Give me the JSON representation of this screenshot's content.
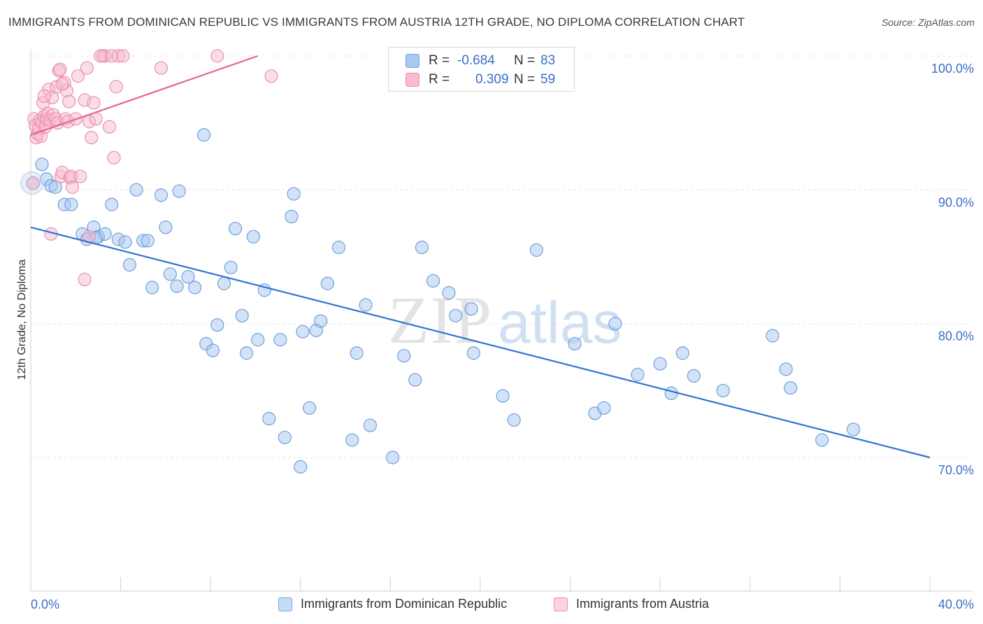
{
  "title": "IMMIGRANTS FROM DOMINICAN REPUBLIC VS IMMIGRANTS FROM AUSTRIA 12TH GRADE, NO DIPLOMA CORRELATION CHART",
  "source": "Source: ZipAtlas.com",
  "watermark": {
    "zip": "ZIP",
    "atlas": "atlas"
  },
  "legend_top": [
    {
      "r_label": "R =",
      "r_value": "-0.684",
      "n_label": "N =",
      "n_value": "83",
      "color": "#a8c8f0",
      "border": "#7aa6e0"
    },
    {
      "r_label": "R =",
      "r_value": "0.309",
      "n_label": "N =",
      "n_value": "59",
      "color": "#f8bcd0",
      "border": "#ec8fae"
    }
  ],
  "legend_bottom": [
    {
      "label": "Immigrants from Dominican Republic",
      "color": "#a8c8f0",
      "border": "#7aa6e0"
    },
    {
      "label": "Immigrants from Austria",
      "color": "#f8bcd0",
      "border": "#ec8fae"
    }
  ],
  "chart_data": {
    "type": "scatter",
    "title": "IMMIGRANTS FROM DOMINICAN REPUBLIC VS IMMIGRANTS FROM AUSTRIA 12TH GRADE, NO DIPLOMA CORRELATION CHART",
    "xlabel": "",
    "ylabel": "12th Grade, No Diploma",
    "xlim": [
      0,
      40
    ],
    "ylim": [
      60,
      101
    ],
    "x_tick_labels": [
      "0.0%",
      "40.0%"
    ],
    "y_ticks": [
      70,
      80,
      90,
      100
    ],
    "y_tick_labels": [
      "70.0%",
      "80.0%",
      "90.0%",
      "100.0%"
    ],
    "grid": true,
    "legend_position": "top-center",
    "series": [
      {
        "name": "Immigrants from Dominican Republic",
        "color": "#a8c8f0",
        "edge_color": "#6f9fdc",
        "line_color": "#2f74d0",
        "trend": {
          "x": [
            0,
            40
          ],
          "y": [
            87.2,
            70.0
          ]
        },
        "points": [
          [
            0.1,
            90.5
          ],
          [
            0.5,
            91.9
          ],
          [
            0.7,
            90.8
          ],
          [
            0.9,
            90.3
          ],
          [
            1.1,
            90.2
          ],
          [
            1.5,
            88.9
          ],
          [
            1.8,
            88.9
          ],
          [
            2.3,
            86.7
          ],
          [
            2.5,
            86.3
          ],
          [
            2.8,
            87.2
          ],
          [
            3.0,
            86.5
          ],
          [
            3.3,
            86.7
          ],
          [
            3.6,
            88.9
          ],
          [
            3.9,
            86.3
          ],
          [
            4.2,
            86.1
          ],
          [
            4.4,
            84.4
          ],
          [
            4.7,
            90.0
          ],
          [
            5.0,
            86.2
          ],
          [
            5.2,
            86.2
          ],
          [
            5.4,
            82.7
          ],
          [
            5.8,
            89.6
          ],
          [
            6.0,
            87.2
          ],
          [
            6.2,
            83.7
          ],
          [
            6.5,
            82.8
          ],
          [
            6.6,
            89.9
          ],
          [
            7.0,
            83.5
          ],
          [
            7.3,
            82.7
          ],
          [
            7.7,
            94.1
          ],
          [
            7.8,
            78.5
          ],
          [
            8.1,
            78.0
          ],
          [
            8.3,
            79.9
          ],
          [
            8.6,
            83.0
          ],
          [
            8.9,
            84.2
          ],
          [
            9.1,
            87.1
          ],
          [
            9.4,
            80.6
          ],
          [
            9.6,
            77.8
          ],
          [
            9.9,
            86.5
          ],
          [
            10.1,
            78.8
          ],
          [
            10.4,
            82.5
          ],
          [
            10.6,
            72.9
          ],
          [
            11.1,
            78.8
          ],
          [
            11.3,
            71.5
          ],
          [
            11.6,
            88.0
          ],
          [
            11.7,
            89.7
          ],
          [
            12.0,
            69.3
          ],
          [
            12.1,
            79.4
          ],
          [
            12.4,
            73.7
          ],
          [
            12.7,
            79.5
          ],
          [
            12.9,
            80.2
          ],
          [
            13.2,
            83.0
          ],
          [
            13.7,
            85.7
          ],
          [
            14.3,
            71.3
          ],
          [
            14.5,
            77.8
          ],
          [
            14.9,
            81.4
          ],
          [
            15.1,
            72.4
          ],
          [
            16.1,
            70.0
          ],
          [
            16.6,
            77.6
          ],
          [
            17.1,
            75.8
          ],
          [
            17.4,
            85.7
          ],
          [
            17.9,
            83.2
          ],
          [
            18.6,
            82.3
          ],
          [
            18.9,
            80.6
          ],
          [
            19.6,
            81.1
          ],
          [
            19.7,
            77.8
          ],
          [
            21.0,
            74.6
          ],
          [
            21.5,
            72.8
          ],
          [
            22.5,
            85.5
          ],
          [
            24.2,
            78.5
          ],
          [
            25.1,
            73.3
          ],
          [
            25.5,
            73.7
          ],
          [
            26.0,
            80.0
          ],
          [
            27.0,
            76.2
          ],
          [
            28.0,
            77.0
          ],
          [
            28.5,
            74.8
          ],
          [
            29.0,
            77.8
          ],
          [
            29.5,
            76.1
          ],
          [
            30.8,
            75.0
          ],
          [
            33.0,
            79.1
          ],
          [
            33.6,
            76.6
          ],
          [
            33.8,
            75.2
          ],
          [
            35.2,
            71.3
          ],
          [
            36.6,
            72.1
          ],
          [
            2.9,
            86.4
          ]
        ]
      },
      {
        "name": "Immigrants from Austria",
        "color": "#f8bcd0",
        "edge_color": "#e991b0",
        "line_color": "#e5648f",
        "trend": {
          "x": [
            0,
            10.1
          ],
          "y": [
            94.1,
            100.0
          ]
        },
        "points": [
          [
            0.1,
            90.5
          ],
          [
            0.15,
            95.3
          ],
          [
            0.2,
            94.8
          ],
          [
            0.25,
            93.9
          ],
          [
            0.3,
            94.2
          ],
          [
            0.35,
            94.6
          ],
          [
            0.4,
            95.2
          ],
          [
            0.45,
            94.0
          ],
          [
            0.5,
            95.1
          ],
          [
            0.55,
            96.5
          ],
          [
            0.6,
            95.5
          ],
          [
            0.65,
            94.7
          ],
          [
            0.7,
            95.3
          ],
          [
            0.75,
            95.7
          ],
          [
            0.8,
            97.5
          ],
          [
            0.85,
            95.2
          ],
          [
            0.9,
            86.7
          ],
          [
            0.95,
            96.9
          ],
          [
            1.0,
            95.6
          ],
          [
            1.1,
            95.3
          ],
          [
            1.15,
            97.7
          ],
          [
            1.2,
            95.0
          ],
          [
            1.25,
            98.9
          ],
          [
            1.3,
            99.0
          ],
          [
            1.35,
            91.0
          ],
          [
            1.4,
            91.3
          ],
          [
            1.5,
            98.0
          ],
          [
            1.55,
            95.3
          ],
          [
            1.6,
            97.4
          ],
          [
            1.65,
            95.1
          ],
          [
            1.7,
            96.6
          ],
          [
            1.75,
            90.9
          ],
          [
            1.8,
            91.0
          ],
          [
            1.85,
            90.2
          ],
          [
            2.0,
            95.3
          ],
          [
            2.1,
            98.5
          ],
          [
            2.2,
            91.0
          ],
          [
            2.4,
            96.7
          ],
          [
            2.5,
            99.1
          ],
          [
            2.4,
            83.3
          ],
          [
            2.6,
            95.1
          ],
          [
            2.7,
            93.9
          ],
          [
            2.8,
            96.5
          ],
          [
            2.9,
            95.3
          ],
          [
            2.6,
            86.5
          ],
          [
            3.2,
            100.0
          ],
          [
            3.3,
            100.0
          ],
          [
            3.1,
            100.0
          ],
          [
            3.6,
            100.0
          ],
          [
            3.9,
            100.0
          ],
          [
            4.1,
            100.0
          ],
          [
            3.7,
            92.4
          ],
          [
            3.8,
            97.7
          ],
          [
            3.5,
            94.7
          ],
          [
            5.8,
            99.1
          ],
          [
            8.3,
            100.0
          ],
          [
            10.7,
            98.5
          ],
          [
            0.6,
            97.0
          ],
          [
            1.4,
            97.9
          ]
        ]
      }
    ]
  }
}
